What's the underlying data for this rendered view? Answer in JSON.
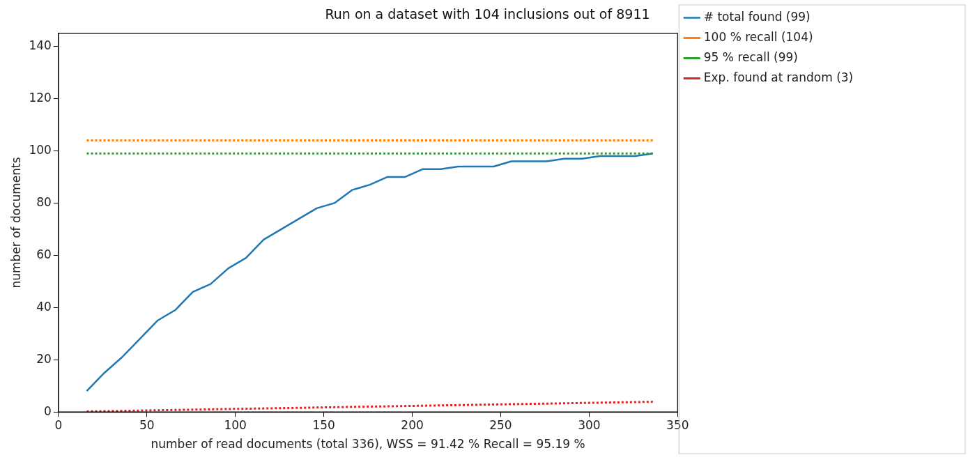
{
  "chart_data": {
    "type": "line",
    "title": "Run on a dataset with 104 inclusions out of 8911",
    "xlabel": "number of read documents (total 336), WSS = 91.42 % Recall = 95.19 %",
    "ylabel": "number of documents",
    "xlim": [
      0,
      350
    ],
    "xticks": [
      0,
      50,
      100,
      150,
      200,
      250,
      300,
      350
    ],
    "ylim": [
      0,
      145
    ],
    "yticks": [
      0,
      20,
      40,
      60,
      80,
      100,
      120,
      140
    ],
    "grid": false,
    "legend": "right",
    "marker": "none",
    "series": [
      {
        "name": "# total found (99)",
        "color": "#1f77b4",
        "line_style": "solid",
        "x": [
          16,
          26,
          36,
          46,
          56,
          66,
          76,
          86,
          96,
          106,
          116,
          126,
          136,
          146,
          156,
          166,
          176,
          186,
          196,
          206,
          216,
          226,
          236,
          246,
          256,
          266,
          276,
          286,
          296,
          306,
          316,
          326,
          336
        ],
        "values": [
          8,
          15,
          21,
          28,
          35,
          39,
          46,
          49,
          55,
          59,
          66,
          70,
          74,
          78,
          80,
          85,
          87,
          90,
          90,
          93,
          93,
          94,
          94,
          94,
          96,
          96,
          96,
          97,
          97,
          98,
          98,
          98,
          99
        ]
      },
      {
        "name": "100 % recall (104)",
        "color": "#ff7f0e",
        "line_style": "dotted",
        "x": [
          16,
          336
        ],
        "values": [
          104,
          104
        ]
      },
      {
        "name": "95 % recall (99)",
        "color": "#2ca02c",
        "line_style": "dotted",
        "x": [
          16,
          336
        ],
        "values": [
          99,
          99
        ]
      },
      {
        "name": "Exp. found at random (3)",
        "color": "#d62728",
        "line_style": "dotted",
        "x": [
          16,
          336
        ],
        "values": [
          0.2,
          3.9
        ]
      }
    ]
  }
}
